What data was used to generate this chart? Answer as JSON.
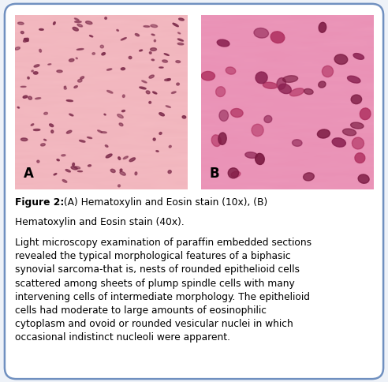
{
  "figure_label": "Figure 2:",
  "caption_rest_line1": " (A) Hematoxylin and Eosin stain (10x), (B)",
  "caption_line2": "Hematoxylin and Eosin stain (40x).",
  "body_text": "Light microscopy examination of paraffin embedded sections\nrevealed the typical morphological features of a biphasic\nsynovial sarcoma-that is, nests of rounded epithelioid cells\nscattered among sheets of plump spindle cells with many\nintervening cells of intermediate morphology. The epithelioid\ncells had moderate to large amounts of eosinophilic\ncytoplasm and ovoid or rounded vesicular nuclei in which\noccasional indistinct nucleoli were apparent.",
  "label_A": "A",
  "label_B": "B",
  "bg_color": "#eef2f8",
  "border_color": "#7090c0",
  "text_color": "#000000",
  "fig_width": 4.92,
  "fig_height": 4.84
}
